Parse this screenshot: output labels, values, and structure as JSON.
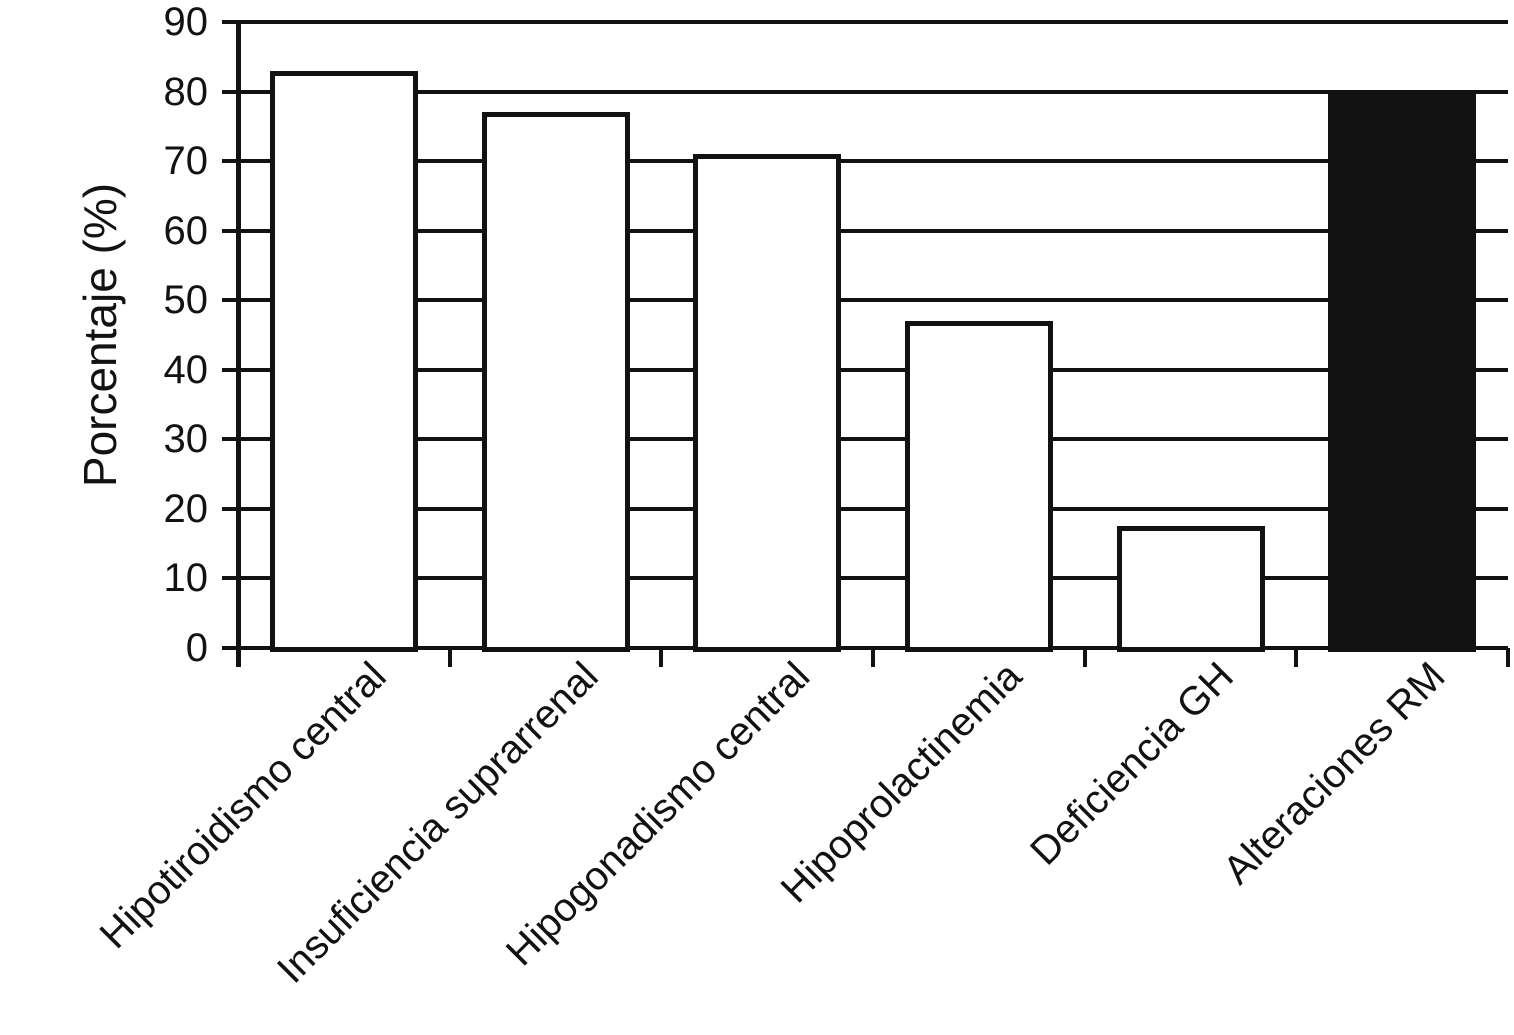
{
  "colors": {
    "background": "#ffffff",
    "stroke": "#121212",
    "text": "#121212",
    "highlight_bar_fill": "#121212",
    "default_bar_fill": "#ffffff"
  },
  "chart_data": {
    "type": "bar",
    "title": "",
    "xlabel": "",
    "ylabel": "Porcentaje (%)",
    "ylim": [
      0,
      90
    ],
    "ytick_step": 10,
    "grid": true,
    "legend": "none",
    "categories": [
      "Hipotiroidismo central",
      "Insuficiencia suprarrenal",
      "Hipogonadismo central",
      "Hipoprolactinemia",
      "Deficiencia GH",
      "Alteraciones RM"
    ],
    "values": [
      83,
      77,
      71,
      47,
      17.5,
      80
    ],
    "bar_fills": [
      "#ffffff",
      "#ffffff",
      "#ffffff",
      "#ffffff",
      "#ffffff",
      "#121212"
    ],
    "bar_border": "#121212"
  }
}
